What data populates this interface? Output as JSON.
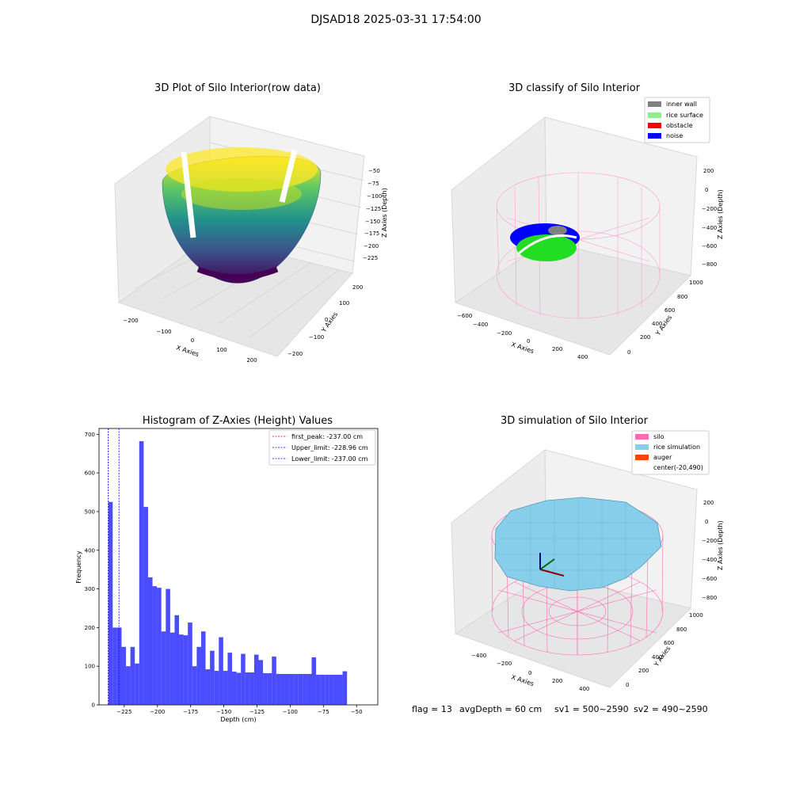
{
  "suptitle": "DJSAD18 2025-03-31 17:54:00",
  "chart_data": [
    {
      "type": "3d-surface",
      "title": "3D Plot of Silo Interior(row data)",
      "xlabel": "X Axies",
      "ylabel": "Y Axies",
      "zlabel": "Z Axies (Depth)",
      "xticks": [
        "−200",
        "−100",
        "0",
        "100",
        "200"
      ],
      "yticks": [
        "−200",
        "−100",
        "0",
        "100",
        "200"
      ],
      "zticks": [
        "−50",
        "−75",
        "−100",
        "−125",
        "−150",
        "−175",
        "−200",
        "−225"
      ],
      "colormap": "viridis"
    },
    {
      "type": "3d-scatter",
      "title": "3D classify of Silo Interior",
      "xlabel": "X Axies",
      "ylabel": "Y Axies",
      "zlabel": "Z Axies (Depth)",
      "xticks": [
        "−600",
        "−400",
        "−200",
        "0",
        "200",
        "400"
      ],
      "yticks": [
        "0",
        "200",
        "400",
        "600",
        "800",
        "1000"
      ],
      "zticks": [
        "200",
        "0",
        "−200",
        "−400",
        "−600",
        "−800"
      ],
      "legend": [
        {
          "label": "inner wall",
          "color": "#808080"
        },
        {
          "label": "rice surface",
          "color": "#90ee90"
        },
        {
          "label": "obstacle",
          "color": "#ff0000"
        },
        {
          "label": "noise",
          "color": "#0000ff"
        }
      ]
    },
    {
      "type": "bar",
      "title": "Histogram of Z-Axies (Height) Values",
      "xlabel": "Depth (cm)",
      "ylabel": "Frequency",
      "xlim": [
        -244,
        -34
      ],
      "ylim": [
        0,
        715
      ],
      "xticks": [
        -225,
        -200,
        -175,
        -150,
        -125,
        -100,
        -75,
        -50
      ],
      "yticks": [
        0,
        100,
        200,
        300,
        400,
        500,
        600,
        700
      ],
      "bar_color": "#0000ff",
      "bin_start": -237,
      "bin_width": 3.33,
      "values": [
        525,
        200,
        200,
        150,
        100,
        150,
        107,
        682,
        512,
        330,
        307,
        303,
        190,
        300,
        187,
        232,
        182,
        180,
        213,
        100,
        150,
        190,
        92,
        140,
        88,
        175,
        88,
        135,
        86,
        83,
        132,
        84,
        84,
        130,
        116,
        82,
        82,
        125,
        80,
        80,
        80,
        80,
        80,
        80,
        80,
        80,
        123,
        78,
        78,
        78,
        78,
        78,
        78,
        87
      ],
      "vlines": [
        {
          "label": "first_peak: -237.00 cm",
          "x": -237.0,
          "color": "#ff0000"
        },
        {
          "label": "Upper_limit: -228.96 cm",
          "x": -228.96,
          "color": "#0000ff"
        },
        {
          "label": "Lower_limit: -237.00 cm",
          "x": -237.0,
          "color": "#0000ff"
        }
      ]
    },
    {
      "type": "3d-surface",
      "title": "3D simulation of Silo Interior",
      "xlabel": "X Axies",
      "ylabel": "Y Axies",
      "zlabel": "Z Axies (Depth)",
      "xticks": [
        "−400",
        "−200",
        "0",
        "200",
        "400"
      ],
      "yticks": [
        "0",
        "200",
        "400",
        "600",
        "800",
        "1000"
      ],
      "zticks": [
        "200",
        "0",
        "−200",
        "−400",
        "−600",
        "−800"
      ],
      "legend": [
        {
          "label": "silo",
          "color": "#ff69b4"
        },
        {
          "label": "rice simulation",
          "color": "#87ceeb"
        },
        {
          "label": "auger",
          "color": "#ff4500"
        },
        {
          "label": "center(-20,490)",
          "color": ""
        }
      ]
    }
  ],
  "footer": {
    "flag": "flag = 13",
    "avg": "avgDepth = 60 cm",
    "sv1": "sv1 = 500~2590",
    "sv2": "sv2 = 490~2590"
  }
}
